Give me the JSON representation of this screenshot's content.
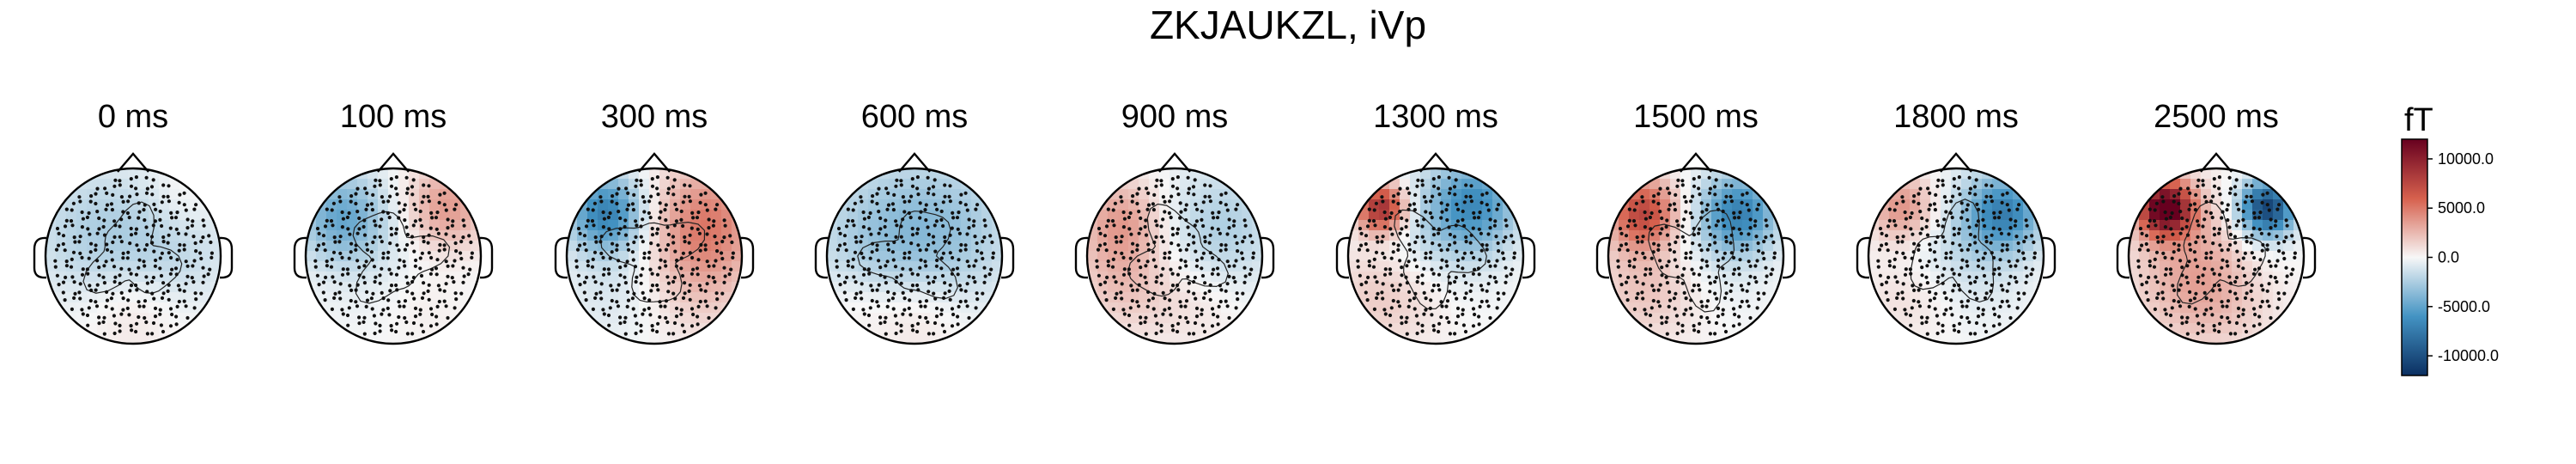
{
  "chart_data": {
    "type": "topomap",
    "title": "ZKJAUKZL, iVp",
    "panels": [
      {
        "label": "0 ms",
        "blobs": [
          {
            "pos": [
              -0.45,
              0.25
            ],
            "val": -2200,
            "r": 0.55
          },
          {
            "pos": [
              0.45,
              0.1
            ],
            "val": -1800,
            "r": 0.5
          },
          {
            "pos": [
              0.0,
              -0.55
            ],
            "val": 1200,
            "r": 0.4
          },
          {
            "pos": [
              0.55,
              0.6
            ],
            "val": 1000,
            "r": 0.3
          }
        ]
      },
      {
        "label": "100 ms",
        "blobs": [
          {
            "pos": [
              -0.6,
              0.45
            ],
            "val": -4500,
            "r": 0.35
          },
          {
            "pos": [
              0.6,
              0.55
            ],
            "val": 4000,
            "r": 0.35
          },
          {
            "pos": [
              0.0,
              0.0
            ],
            "val": -1000,
            "r": 0.6
          },
          {
            "pos": [
              0.3,
              -0.5
            ],
            "val": 800,
            "r": 0.4
          }
        ]
      },
      {
        "label": "300 ms",
        "blobs": [
          {
            "pos": [
              -0.55,
              0.5
            ],
            "val": -7000,
            "r": 0.3
          },
          {
            "pos": [
              0.6,
              0.4
            ],
            "val": 4500,
            "r": 0.45
          },
          {
            "pos": [
              -0.3,
              -0.3
            ],
            "val": -1500,
            "r": 0.5
          },
          {
            "pos": [
              0.4,
              -0.3
            ],
            "val": 2000,
            "r": 0.5
          }
        ]
      },
      {
        "label": "600 ms",
        "blobs": [
          {
            "pos": [
              -0.4,
              0.2
            ],
            "val": -2500,
            "r": 0.6
          },
          {
            "pos": [
              0.4,
              0.3
            ],
            "val": -2500,
            "r": 0.6
          },
          {
            "pos": [
              0.0,
              -0.6
            ],
            "val": 1500,
            "r": 0.4
          },
          {
            "pos": [
              -0.7,
              -0.5
            ],
            "val": 800,
            "r": 0.3
          }
        ]
      },
      {
        "label": "900 ms",
        "blobs": [
          {
            "pos": [
              -0.6,
              0.4
            ],
            "val": 3500,
            "r": 0.35
          },
          {
            "pos": [
              0.5,
              0.3
            ],
            "val": -2500,
            "r": 0.5
          },
          {
            "pos": [
              -0.6,
              -0.3
            ],
            "val": 2000,
            "r": 0.4
          },
          {
            "pos": [
              0.2,
              -0.5
            ],
            "val": 1000,
            "r": 0.4
          }
        ]
      },
      {
        "label": "1300 ms",
        "blobs": [
          {
            "pos": [
              -0.62,
              0.55
            ],
            "val": 9500,
            "r": 0.2
          },
          {
            "pos": [
              0.45,
              0.6
            ],
            "val": -5500,
            "r": 0.35
          },
          {
            "pos": [
              0.0,
              0.3
            ],
            "val": -2000,
            "r": 0.5
          },
          {
            "pos": [
              -0.55,
              -0.4
            ],
            "val": 2000,
            "r": 0.45
          }
        ]
      },
      {
        "label": "1500 ms",
        "blobs": [
          {
            "pos": [
              -0.6,
              0.5
            ],
            "val": 7500,
            "r": 0.28
          },
          {
            "pos": [
              0.5,
              0.5
            ],
            "val": -6500,
            "r": 0.3
          },
          {
            "pos": [
              -0.5,
              -0.3
            ],
            "val": 2500,
            "r": 0.45
          },
          {
            "pos": [
              0.1,
              0.1
            ],
            "val": -1500,
            "r": 0.5
          }
        ]
      },
      {
        "label": "1800 ms",
        "blobs": [
          {
            "pos": [
              -0.6,
              0.55
            ],
            "val": 4500,
            "r": 0.28
          },
          {
            "pos": [
              0.55,
              0.5
            ],
            "val": -6500,
            "r": 0.3
          },
          {
            "pos": [
              0.0,
              0.1
            ],
            "val": -2000,
            "r": 0.55
          },
          {
            "pos": [
              -0.5,
              -0.4
            ],
            "val": 1500,
            "r": 0.4
          }
        ]
      },
      {
        "label": "2500 ms",
        "blobs": [
          {
            "pos": [
              -0.58,
              0.55
            ],
            "val": 13000,
            "r": 0.22
          },
          {
            "pos": [
              0.58,
              0.55
            ],
            "val": -11000,
            "r": 0.22
          },
          {
            "pos": [
              -0.1,
              -0.2
            ],
            "val": 4000,
            "r": 0.55
          },
          {
            "pos": [
              0.4,
              0.0
            ],
            "val": -1500,
            "r": 0.4
          }
        ]
      }
    ],
    "colorbar": {
      "unit": "fT",
      "vmin": -12000,
      "vmax": 12000,
      "ticks": [
        10000,
        5000,
        0,
        -5000,
        -10000
      ],
      "tick_labels": [
        "10000.0",
        "5000.0",
        "0.0",
        "-5000.0",
        "-10000.0"
      ],
      "colormap": "RdBu_r",
      "colors": {
        "neg_end": "#0b2f61",
        "neg_mid": "#4393c3",
        "neutral": "#f7f7f7",
        "pos_mid": "#d6604d",
        "pos_end": "#67001f"
      }
    },
    "grid": false
  }
}
